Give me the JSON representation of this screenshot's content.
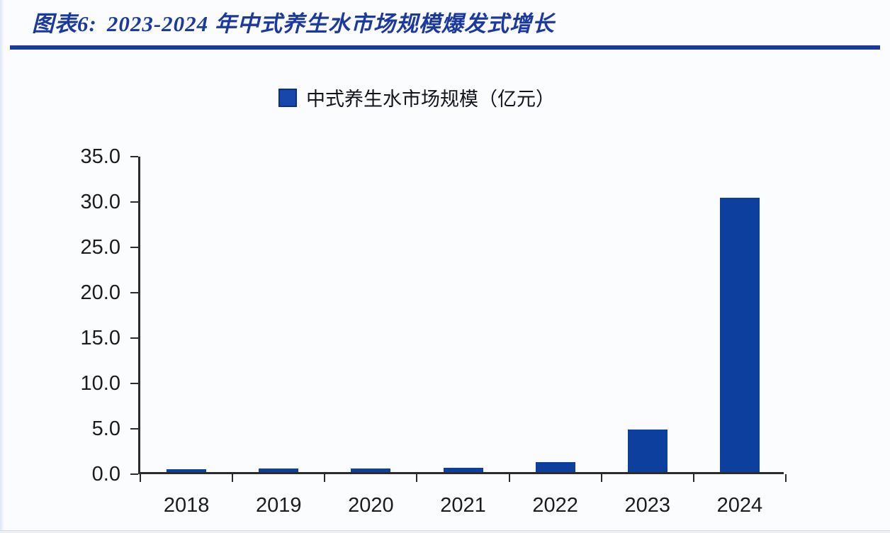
{
  "header": {
    "figure_label": "图表6:",
    "title": "2023-2024 年中式养生水市场规模爆发式增长",
    "accent_color": "#1c3a9e"
  },
  "legend": {
    "label": "中式养生水市场规模（亿元）",
    "marker_color": "#1647ab"
  },
  "chart_data": {
    "type": "bar",
    "title": "图表6: 2023-2024 年中式养生水市场规模爆发式增长",
    "legend_entries": [
      "中式养生水市场规模（亿元）"
    ],
    "legend_position": "top-center",
    "categories": [
      "2018",
      "2019",
      "2020",
      "2021",
      "2022",
      "2023",
      "2024"
    ],
    "values": [
      0.3,
      0.4,
      0.4,
      0.5,
      1.1,
      4.7,
      30.2
    ],
    "xlabel": "",
    "ylabel": "",
    "ylim": [
      0,
      35
    ],
    "ytick_step": 5,
    "ytick_labels": [
      "0.0",
      "5.0",
      "10.0",
      "15.0",
      "20.0",
      "25.0",
      "30.0",
      "35.0"
    ],
    "grid": false,
    "bar_color": "#0d3f9f",
    "axis_color": "#2b2b2b"
  }
}
